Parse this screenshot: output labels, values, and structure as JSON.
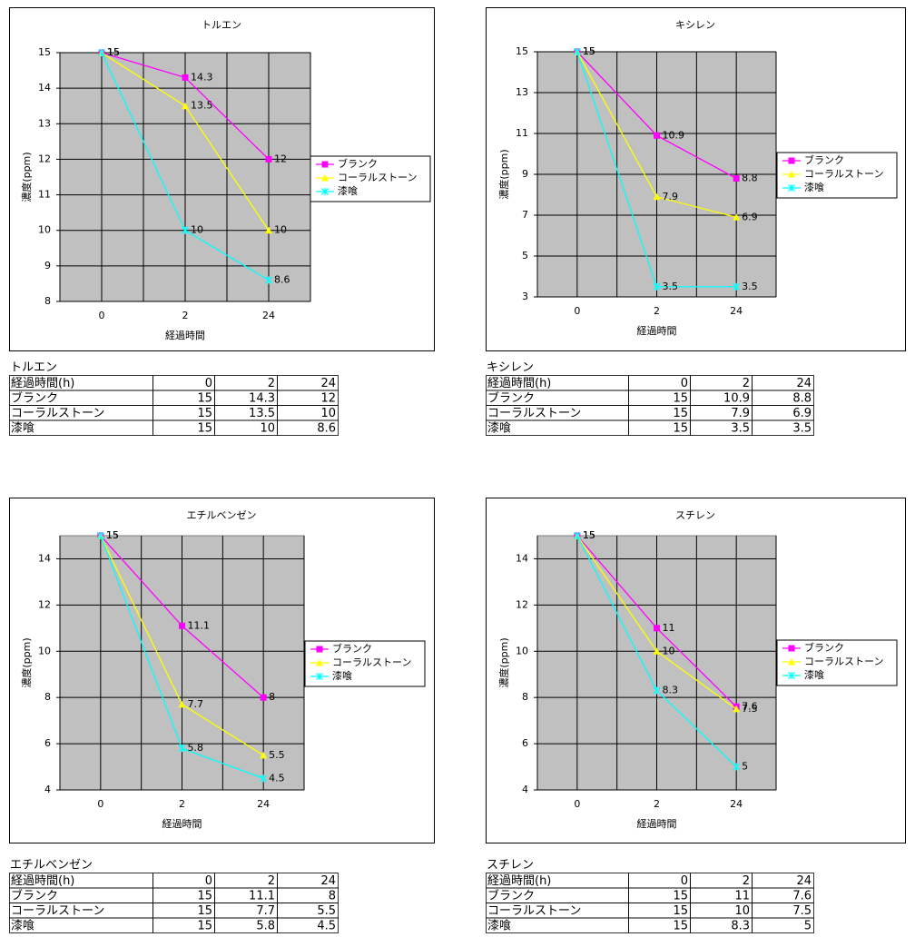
{
  "chart_data": [
    {
      "type": "line",
      "title": "トルエン",
      "x_label": "経過時間",
      "y_label": "濃度(ppm)",
      "categories": [
        "0",
        "2",
        "24"
      ],
      "series": [
        {
          "name": "ブランク",
          "color": "#ff00ff",
          "marker": "square",
          "values": [
            15,
            14.3,
            12
          ]
        },
        {
          "name": "コーラルストーン",
          "color": "#ffff00",
          "marker": "triangle",
          "values": [
            15,
            13.5,
            10
          ]
        },
        {
          "name": "漆喰",
          "color": "#00ffff",
          "marker": "asterisk",
          "values": [
            15,
            10,
            8.6
          ]
        }
      ],
      "ylim": [
        8,
        15
      ],
      "yticks": [
        8,
        9,
        10,
        11,
        12,
        13,
        14,
        15
      ],
      "grid": true,
      "legend": "right"
    },
    {
      "type": "line",
      "title": "キシレン",
      "x_label": "経過時間",
      "y_label": "濃度(ppm)",
      "categories": [
        "0",
        "2",
        "24"
      ],
      "series": [
        {
          "name": "ブランク",
          "color": "#ff00ff",
          "marker": "square",
          "values": [
            15,
            10.9,
            8.8
          ]
        },
        {
          "name": "コーラルストーン",
          "color": "#ffff00",
          "marker": "triangle",
          "values": [
            15,
            7.9,
            6.9
          ]
        },
        {
          "name": "漆喰",
          "color": "#00ffff",
          "marker": "asterisk",
          "values": [
            15,
            3.5,
            3.5
          ]
        }
      ],
      "ylim": [
        3,
        15
      ],
      "yticks": [
        3,
        5,
        7,
        9,
        11,
        13,
        15
      ],
      "grid": true,
      "legend": "right"
    },
    {
      "type": "line",
      "title": "エチルベンゼン",
      "x_label": "経過時間",
      "y_label": "濃度(ppm)",
      "categories": [
        "0",
        "2",
        "24"
      ],
      "series": [
        {
          "name": "ブランク",
          "color": "#ff00ff",
          "marker": "square",
          "values": [
            15,
            11.1,
            8
          ]
        },
        {
          "name": "コーラルストーン",
          "color": "#ffff00",
          "marker": "triangle",
          "values": [
            15,
            7.7,
            5.5
          ]
        },
        {
          "name": "漆喰",
          "color": "#00ffff",
          "marker": "asterisk",
          "values": [
            15,
            5.8,
            4.5
          ]
        }
      ],
      "ylim": [
        4,
        15
      ],
      "yticks": [
        4,
        6,
        8,
        10,
        12,
        14
      ],
      "grid": true,
      "legend": "right"
    },
    {
      "type": "line",
      "title": "スチレン",
      "x_label": "経過時間",
      "y_label": "濃度(ppm)",
      "categories": [
        "0",
        "2",
        "24"
      ],
      "series": [
        {
          "name": "ブランク",
          "color": "#ff00ff",
          "marker": "square",
          "values": [
            15,
            11,
            7.6
          ]
        },
        {
          "name": "コーラルストーン",
          "color": "#ffff00",
          "marker": "triangle",
          "values": [
            15,
            10,
            7.5
          ]
        },
        {
          "name": "漆喰",
          "color": "#00ffff",
          "marker": "asterisk",
          "values": [
            15,
            8.3,
            5
          ]
        }
      ],
      "ylim": [
        4,
        15
      ],
      "yticks": [
        4,
        6,
        8,
        10,
        12,
        14
      ],
      "grid": true,
      "legend": "right"
    }
  ],
  "tables": [
    {
      "title": "トルエン",
      "header": [
        "経過時間(h)",
        0,
        2,
        24
      ],
      "rows": [
        [
          "ブランク",
          15,
          14.3,
          12
        ],
        [
          "コーラルストーン",
          15,
          13.5,
          10
        ],
        [
          "漆喰",
          15,
          10,
          8.6
        ]
      ]
    },
    {
      "title": "キシレン",
      "header": [
        "経過時間(h)",
        0,
        2,
        24
      ],
      "rows": [
        [
          "ブランク",
          15,
          10.9,
          8.8
        ],
        [
          "コーラルストーン",
          15,
          7.9,
          6.9
        ],
        [
          "漆喰",
          15,
          3.5,
          3.5
        ]
      ]
    },
    {
      "title": "エチルベンゼン",
      "header": [
        "経過時間(h)",
        0,
        2,
        24
      ],
      "rows": [
        [
          "ブランク",
          15,
          11.1,
          8
        ],
        [
          "コーラルストーン",
          15,
          7.7,
          5.5
        ],
        [
          "漆喰",
          15,
          5.8,
          4.5
        ]
      ]
    },
    {
      "title": "スチレン",
      "header": [
        "経過時間(h)",
        0,
        2,
        24
      ],
      "rows": [
        [
          "ブランク",
          15,
          11,
          7.6
        ],
        [
          "コーラルストーン",
          15,
          10,
          7.5
        ],
        [
          "漆喰",
          15,
          8.3,
          5
        ]
      ]
    }
  ]
}
